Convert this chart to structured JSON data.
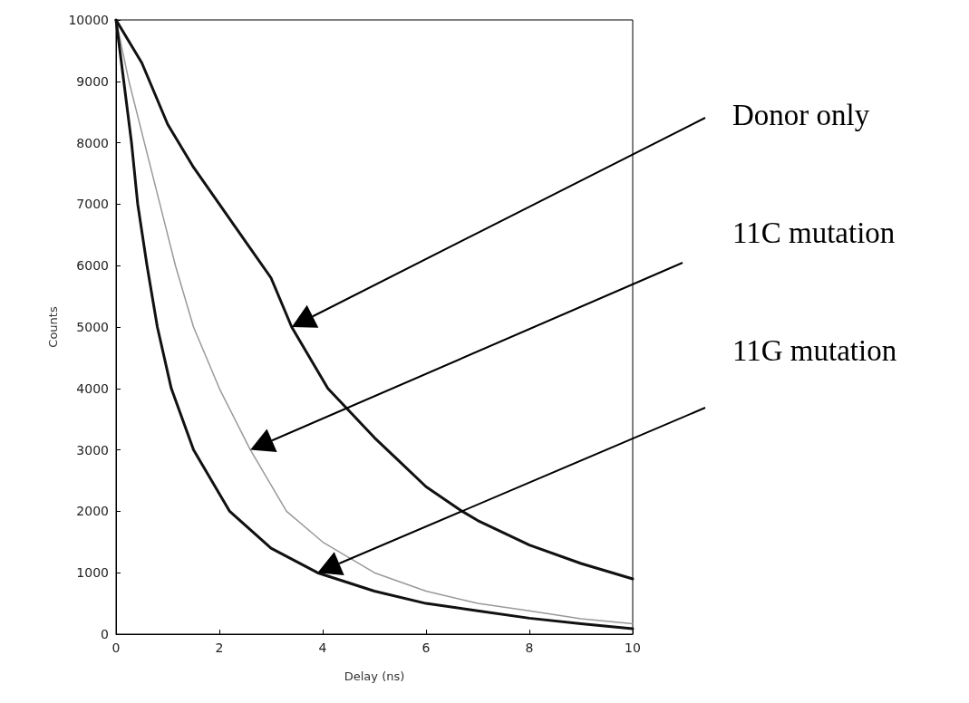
{
  "chart_data": {
    "type": "line",
    "xlabel": "Delay (ns)",
    "ylabel": "Counts",
    "xlim": [
      0,
      10
    ],
    "xticks": [
      0,
      2,
      4,
      6,
      8,
      10
    ],
    "ylim": [
      0,
      10000
    ],
    "yticks": [
      0,
      1000,
      2000,
      3000,
      4000,
      5000,
      6000,
      7000,
      8000,
      9000,
      10000
    ],
    "grid": false,
    "marker": "none",
    "line_style": "solid",
    "series": [
      {
        "name": "Donor only",
        "color": "#111111",
        "x": [
          0,
          0.5,
          1,
          1.5,
          2,
          2.5,
          3,
          3.4,
          4.1,
          5,
          5.5,
          6,
          6.7,
          7,
          8,
          9,
          10
        ],
        "values": [
          10000,
          9300,
          8300,
          7600,
          7000,
          6400,
          5800,
          5000,
          4000,
          3200,
          2800,
          2400,
          2000,
          1850,
          1450,
          1150,
          900
        ]
      },
      {
        "name": "11C mutation",
        "color": "#999999",
        "x": [
          0,
          0.25,
          0.55,
          0.85,
          1.15,
          1.5,
          2,
          2.6,
          3.3,
          4,
          5,
          6,
          7,
          8,
          9,
          10
        ],
        "values": [
          10000,
          9000,
          8000,
          7000,
          6000,
          5000,
          4000,
          3000,
          2000,
          1500,
          1000,
          700,
          500,
          380,
          250,
          170
        ]
      },
      {
        "name": "11G mutation",
        "color": "#111111",
        "x": [
          0,
          0.15,
          0.3,
          0.42,
          0.6,
          0.8,
          1.07,
          1.5,
          2.2,
          3,
          3.9,
          5,
          6,
          7,
          8,
          9,
          10
        ],
        "values": [
          10000,
          9000,
          8000,
          7000,
          6000,
          5000,
          4000,
          3000,
          2000,
          1400,
          1000,
          700,
          500,
          380,
          260,
          170,
          90
        ]
      }
    ]
  }
}
